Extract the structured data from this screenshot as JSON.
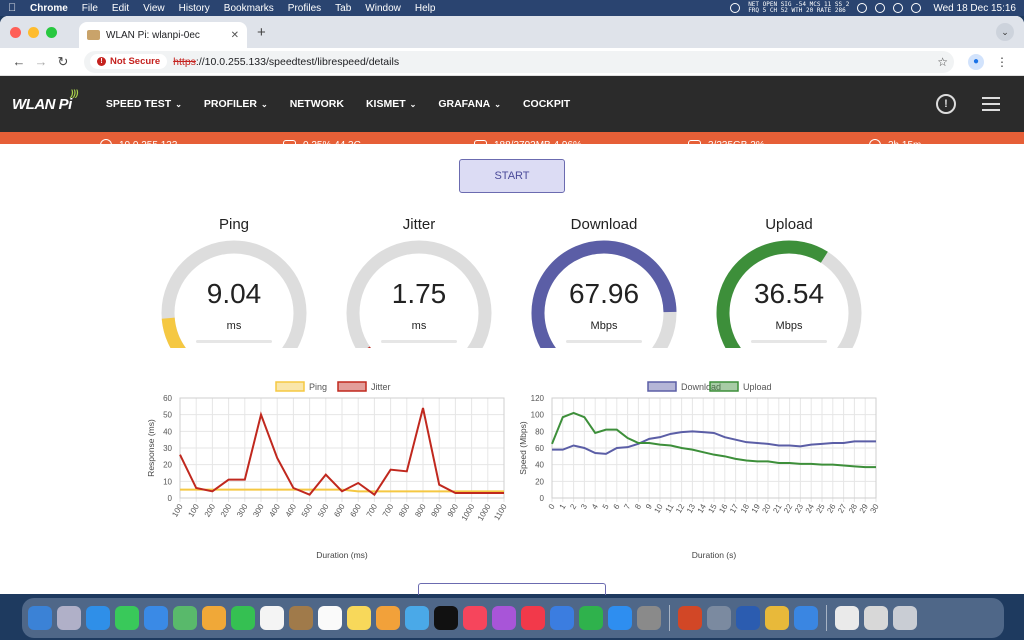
{
  "menubar": {
    "app_name": "Chrome",
    "items": [
      "File",
      "Edit",
      "View",
      "History",
      "Bookmarks",
      "Profiles",
      "Tab",
      "Window",
      "Help"
    ],
    "network_line1": "NET OPEN SIG -54 MCS 11 SS 2",
    "network_line2": "FRQ 5 CH 52 WTH 20 RATE 286",
    "clock": "Wed 18 Dec  15:16"
  },
  "browser": {
    "tab_title": "WLAN Pi: wlanpi-0ec",
    "new_tab": "+",
    "security_label": "Not Secure",
    "url_scheme": "https",
    "url_rest": "://10.0.255.133/speedtest/librespeed/details"
  },
  "app": {
    "logo": "WLAN Pi",
    "nav": [
      {
        "label": "SPEED TEST",
        "dropdown": true
      },
      {
        "label": "PROFILER",
        "dropdown": true
      },
      {
        "label": "NETWORK",
        "dropdown": false
      },
      {
        "label": "KISMET",
        "dropdown": true
      },
      {
        "label": "GRAFANA",
        "dropdown": true
      },
      {
        "label": "COCKPIT",
        "dropdown": false
      }
    ],
    "info_icon": "!"
  },
  "status": {
    "ip": "10.0.255.133",
    "cpu": "0.25% 44.3C",
    "memory": "188/3792MB 4.96%",
    "disk": "3/235GB 2%",
    "uptime": "2h 15m"
  },
  "colors": {
    "accent": "#e65f37",
    "ping": "#f5c842",
    "jitter": "#c0281e",
    "download": "#5b5ea6",
    "upload": "#3d8f3a"
  },
  "start_label": "START",
  "gauges": [
    {
      "title": "Ping",
      "value": "9.04",
      "unit": "ms",
      "fraction": 0.15,
      "color": "#f5c842"
    },
    {
      "title": "Jitter",
      "value": "1.75",
      "unit": "ms",
      "fraction": 0.04,
      "color": "#c0281e"
    },
    {
      "title": "Download",
      "value": "67.96",
      "unit": "Mbps",
      "fraction": 0.83,
      "color": "#5b5ea6"
    },
    {
      "title": "Upload",
      "value": "36.54",
      "unit": "Mbps",
      "fraction": 0.62,
      "color": "#3d8f3a"
    }
  ],
  "chart_data": [
    {
      "type": "line",
      "xlabel": "Duration (ms)",
      "ylabel": "Response (ms)",
      "ylim": [
        0,
        60
      ],
      "yticks": [
        0,
        10,
        20,
        30,
        40,
        50,
        60
      ],
      "categories": [
        "100",
        "100",
        "200",
        "200",
        "300",
        "300",
        "400",
        "400",
        "500",
        "500",
        "600",
        "600",
        "700",
        "700",
        "800",
        "800",
        "900",
        "900",
        "1000",
        "1000",
        "1100"
      ],
      "grid": true,
      "legend": "top-center",
      "series": [
        {
          "name": "Ping",
          "color": "#f5c842",
          "values": [
            5,
            5,
            5,
            5,
            5,
            5,
            5,
            5,
            5,
            5,
            5,
            4,
            4,
            4,
            4,
            4,
            4,
            4,
            4,
            4,
            4
          ]
        },
        {
          "name": "Jitter",
          "color": "#c0281e",
          "values": [
            26,
            6,
            4,
            11,
            11,
            50,
            24,
            6,
            2,
            14,
            4,
            9,
            2,
            17,
            16,
            54,
            8,
            3,
            3,
            3,
            3
          ]
        }
      ]
    },
    {
      "type": "line",
      "xlabel": "Duration (s)",
      "ylabel": "Speed (Mbps)",
      "ylim": [
        0,
        120
      ],
      "yticks": [
        0,
        20,
        40,
        60,
        80,
        100,
        120
      ],
      "categories": [
        "0",
        "1",
        "2",
        "3",
        "4",
        "5",
        "6",
        "7",
        "8",
        "9",
        "10",
        "11",
        "12",
        "13",
        "14",
        "15",
        "16",
        "17",
        "18",
        "19",
        "20",
        "21",
        "22",
        "23",
        "24",
        "25",
        "26",
        "27",
        "28",
        "29",
        "30"
      ],
      "grid": true,
      "legend": "top-center",
      "series": [
        {
          "name": "Download",
          "color": "#5b5ea6",
          "values": [
            58,
            58,
            63,
            60,
            54,
            53,
            60,
            61,
            65,
            71,
            73,
            77,
            79,
            80,
            79,
            78,
            73,
            70,
            67,
            66,
            65,
            63,
            63,
            62,
            64,
            65,
            66,
            66,
            68,
            68,
            68
          ]
        },
        {
          "name": "Upload",
          "color": "#3d8f3a",
          "values": [
            65,
            97,
            102,
            97,
            78,
            82,
            82,
            72,
            66,
            66,
            64,
            63,
            60,
            58,
            55,
            52,
            50,
            47,
            45,
            44,
            44,
            42,
            42,
            41,
            41,
            40,
            40,
            39,
            38,
            37,
            37
          ]
        }
      ]
    }
  ]
}
